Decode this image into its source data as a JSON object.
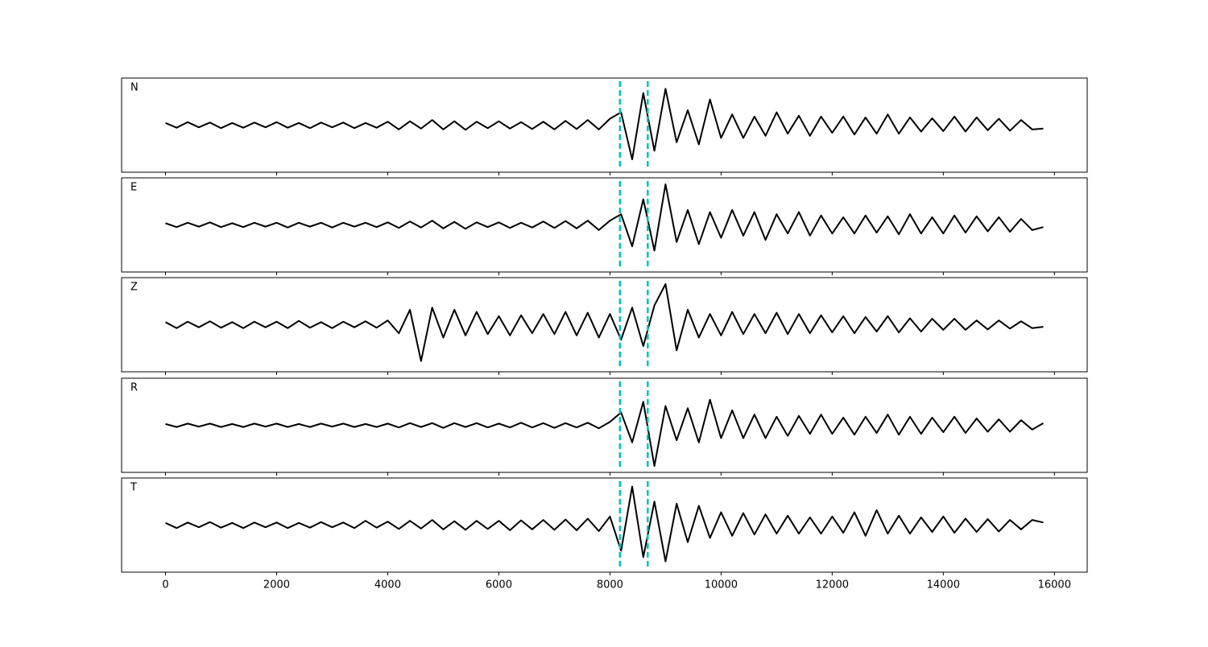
{
  "chart_data": {
    "type": "line",
    "x": [
      0,
      200,
      400,
      600,
      800,
      1000,
      1200,
      1400,
      1600,
      1800,
      2000,
      2200,
      2400,
      2600,
      2800,
      3000,
      3200,
      3400,
      3600,
      3800,
      4000,
      4200,
      4400,
      4600,
      4800,
      5000,
      5200,
      5400,
      5600,
      5800,
      6000,
      6200,
      6400,
      6600,
      6800,
      7000,
      7200,
      7400,
      7600,
      7800,
      8000,
      8200,
      8400,
      8600,
      8800,
      9000,
      9200,
      9400,
      9600,
      9800,
      10000,
      10200,
      10400,
      10600,
      10800,
      11000,
      11200,
      11400,
      11600,
      11800,
      12000,
      12200,
      12400,
      12600,
      12800,
      13000,
      13200,
      13400,
      13600,
      13800,
      14000,
      14200,
      14400,
      14600,
      14800,
      15000,
      15200,
      15400,
      15600,
      15800
    ],
    "series": [
      {
        "name": "N",
        "color": "#000000",
        "values": [
          0.05,
          -0.06,
          0.07,
          -0.05,
          0.06,
          -0.07,
          0.05,
          -0.06,
          0.06,
          -0.05,
          0.07,
          -0.06,
          0.05,
          -0.07,
          0.06,
          -0.05,
          0.06,
          -0.07,
          0.05,
          -0.06,
          0.08,
          -0.1,
          0.09,
          -0.08,
          0.12,
          -0.1,
          0.09,
          -0.11,
          0.08,
          -0.07,
          0.09,
          -0.08,
          0.07,
          -0.09,
          0.08,
          -0.1,
          0.1,
          -0.09,
          0.12,
          -0.1,
          0.15,
          0.3,
          -0.8,
          0.75,
          -0.6,
          0.85,
          -0.4,
          0.35,
          -0.45,
          0.6,
          -0.3,
          0.25,
          -0.3,
          0.2,
          -0.25,
          0.3,
          -0.2,
          0.22,
          -0.25,
          0.2,
          -0.18,
          0.2,
          -0.22,
          0.18,
          -0.2,
          0.25,
          -0.2,
          0.18,
          -0.15,
          0.16,
          -0.14,
          0.2,
          -0.15,
          0.18,
          -0.12,
          0.15,
          -0.13,
          0.12,
          -0.1,
          -0.08
        ]
      },
      {
        "name": "E",
        "color": "#000000",
        "values": [
          0.04,
          -0.05,
          0.05,
          -0.04,
          0.06,
          -0.05,
          0.04,
          -0.05,
          0.05,
          -0.04,
          0.05,
          -0.06,
          0.05,
          -0.04,
          0.05,
          -0.06,
          0.05,
          -0.04,
          0.05,
          -0.05,
          0.06,
          -0.07,
          0.08,
          -0.06,
          0.1,
          -0.08,
          0.07,
          -0.09,
          0.06,
          -0.05,
          0.06,
          -0.07,
          0.05,
          -0.06,
          0.08,
          -0.07,
          0.09,
          -0.08,
          0.1,
          -0.12,
          0.1,
          0.25,
          -0.5,
          0.6,
          -0.6,
          0.95,
          -0.4,
          0.35,
          -0.45,
          0.3,
          -0.3,
          0.35,
          -0.25,
          0.3,
          -0.35,
          0.25,
          -0.2,
          0.3,
          -0.25,
          0.22,
          -0.2,
          0.18,
          -0.2,
          0.22,
          -0.18,
          0.2,
          -0.22,
          0.25,
          -0.2,
          0.18,
          -0.2,
          0.22,
          -0.18,
          0.2,
          -0.15,
          0.18,
          -0.16,
          0.14,
          -0.12,
          -0.05
        ]
      },
      {
        "name": "Z",
        "color": "#000000",
        "values": [
          0.06,
          -0.08,
          0.07,
          -0.06,
          0.08,
          -0.07,
          0.06,
          -0.08,
          0.07,
          -0.06,
          0.07,
          -0.08,
          0.09,
          -0.07,
          0.06,
          -0.08,
          0.07,
          -0.06,
          0.08,
          -0.07,
          0.1,
          -0.2,
          0.35,
          -0.85,
          0.4,
          -0.3,
          0.35,
          -0.25,
          0.3,
          -0.22,
          0.2,
          -0.25,
          0.22,
          -0.2,
          0.25,
          -0.22,
          0.3,
          -0.25,
          0.28,
          -0.3,
          0.25,
          -0.35,
          0.4,
          -0.5,
          0.45,
          0.95,
          -0.6,
          0.35,
          -0.3,
          0.25,
          -0.25,
          0.3,
          -0.22,
          0.25,
          -0.2,
          0.28,
          -0.22,
          0.25,
          -0.2,
          0.22,
          -0.18,
          0.2,
          -0.2,
          0.18,
          -0.16,
          0.2,
          -0.18,
          0.15,
          -0.16,
          0.14,
          -0.12,
          0.14,
          -0.12,
          0.1,
          -0.11,
          0.1,
          -0.09,
          0.08,
          -0.08,
          -0.05
        ]
      },
      {
        "name": "R",
        "color": "#000000",
        "values": [
          0.03,
          -0.04,
          0.04,
          -0.03,
          0.04,
          -0.04,
          0.03,
          -0.04,
          0.04,
          -0.03,
          0.04,
          -0.04,
          0.03,
          -0.04,
          0.04,
          -0.03,
          0.04,
          -0.04,
          0.03,
          -0.04,
          0.04,
          -0.05,
          0.05,
          -0.04,
          0.05,
          -0.06,
          0.05,
          -0.04,
          0.05,
          -0.05,
          0.04,
          -0.05,
          0.06,
          -0.05,
          0.05,
          -0.06,
          0.05,
          -0.05,
          0.06,
          -0.07,
          0.08,
          0.3,
          -0.4,
          0.55,
          -0.95,
          0.45,
          -0.35,
          0.4,
          -0.4,
          0.6,
          -0.3,
          0.35,
          -0.3,
          0.25,
          -0.3,
          0.2,
          -0.25,
          0.22,
          -0.2,
          0.25,
          -0.2,
          0.18,
          -0.22,
          0.2,
          -0.18,
          0.25,
          -0.22,
          0.2,
          -0.2,
          0.18,
          -0.16,
          0.2,
          -0.18,
          0.16,
          -0.15,
          0.14,
          -0.15,
          0.12,
          -0.1,
          0.05
        ]
      },
      {
        "name": "T",
        "color": "#000000",
        "values": [
          0.05,
          -0.07,
          0.06,
          -0.05,
          0.07,
          -0.06,
          0.05,
          -0.07,
          0.06,
          -0.05,
          0.06,
          -0.07,
          0.05,
          -0.06,
          0.07,
          -0.05,
          0.06,
          -0.07,
          0.1,
          -0.06,
          0.08,
          -0.09,
          0.1,
          -0.08,
          0.12,
          -0.1,
          0.09,
          -0.11,
          0.1,
          -0.09,
          0.1,
          -0.12,
          0.11,
          -0.1,
          0.12,
          -0.11,
          0.13,
          -0.12,
          0.15,
          -0.14,
          0.2,
          -0.6,
          0.9,
          -0.75,
          0.55,
          -0.85,
          0.5,
          -0.4,
          0.45,
          -0.3,
          0.3,
          -0.25,
          0.28,
          -0.22,
          0.25,
          -0.2,
          0.22,
          -0.2,
          0.18,
          -0.2,
          0.2,
          -0.18,
          0.3,
          -0.25,
          0.35,
          -0.2,
          0.22,
          -0.2,
          0.18,
          -0.16,
          0.2,
          -0.18,
          0.15,
          -0.16,
          0.14,
          -0.15,
          0.12,
          -0.1,
          0.12,
          0.06
        ]
      }
    ],
    "vlines": [
      8180,
      8680
    ],
    "vline_color": "#00bfbf",
    "xlim": [
      -790,
      16590
    ],
    "ylim": [
      -1.1,
      1.1
    ],
    "xticks": [
      0,
      2000,
      4000,
      6000,
      8000,
      10000,
      12000,
      14000,
      16000
    ]
  }
}
